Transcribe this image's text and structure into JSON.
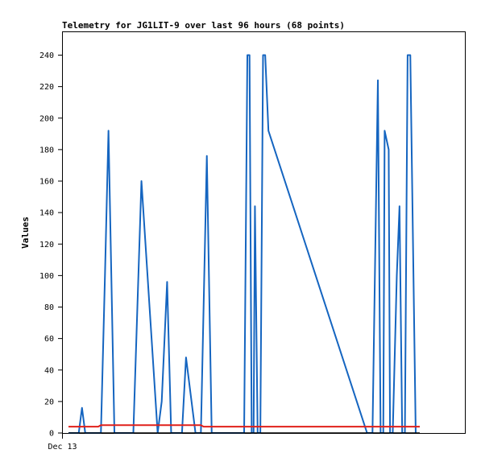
{
  "chart_data": {
    "type": "line",
    "title": "Telemetry for JG1LIT-9 over last 96 hours (68 points)",
    "xlabel": "",
    "ylabel": "Values",
    "x_ticks": [
      "Dec 13"
    ],
    "y_ticks": [
      "0",
      "20",
      "40",
      "60",
      "80",
      "100",
      "120",
      "140",
      "160",
      "180",
      "200",
      "220",
      "240"
    ],
    "ylim": [
      0,
      255
    ],
    "grid": false,
    "legend": "none",
    "series": [
      {
        "color": "#1565c0",
        "points": [
          [
            0.0,
            0
          ],
          [
            3.8,
            0
          ],
          [
            5.0,
            16
          ],
          [
            6.2,
            0
          ],
          [
            12.0,
            0
          ],
          [
            13.5,
            100
          ],
          [
            14.8,
            192
          ],
          [
            17.0,
            0
          ],
          [
            24.0,
            0
          ],
          [
            27.0,
            160
          ],
          [
            33.0,
            0
          ],
          [
            34.5,
            20
          ],
          [
            36.5,
            96
          ],
          [
            38.0,
            0
          ],
          [
            42.0,
            0
          ],
          [
            43.5,
            48
          ],
          [
            47.0,
            0
          ],
          [
            49.0,
            0
          ],
          [
            51.2,
            176
          ],
          [
            53.0,
            0
          ],
          [
            65.0,
            0
          ],
          [
            66.2,
            240
          ],
          [
            67.0,
            240
          ],
          [
            67.8,
            0
          ],
          [
            68.5,
            0
          ],
          [
            69.0,
            144
          ],
          [
            70.0,
            0
          ],
          [
            71.0,
            0
          ],
          [
            72.0,
            240
          ],
          [
            72.8,
            240
          ],
          [
            74.0,
            192
          ],
          [
            110.5,
            0
          ],
          [
            112.5,
            0
          ],
          [
            114.5,
            224
          ],
          [
            115.5,
            0
          ],
          [
            116.5,
            0
          ],
          [
            117.0,
            192
          ],
          [
            118.5,
            180
          ],
          [
            119.0,
            0
          ],
          [
            120.0,
            0
          ],
          [
            121.5,
            100
          ],
          [
            122.5,
            144
          ],
          [
            123.5,
            0
          ],
          [
            124.5,
            0
          ],
          [
            125.5,
            240
          ],
          [
            126.5,
            240
          ],
          [
            128.5,
            0
          ]
        ]
      },
      {
        "color": "#e0201a",
        "points": [
          [
            0.0,
            4
          ],
          [
            11.0,
            4
          ],
          [
            12.0,
            5
          ],
          [
            49.0,
            5
          ],
          [
            50.0,
            4
          ],
          [
            130.0,
            4
          ]
        ]
      },
      {
        "color": "#000000",
        "points": [
          [
            0.0,
            0
          ],
          [
            130.0,
            0
          ]
        ]
      }
    ]
  }
}
